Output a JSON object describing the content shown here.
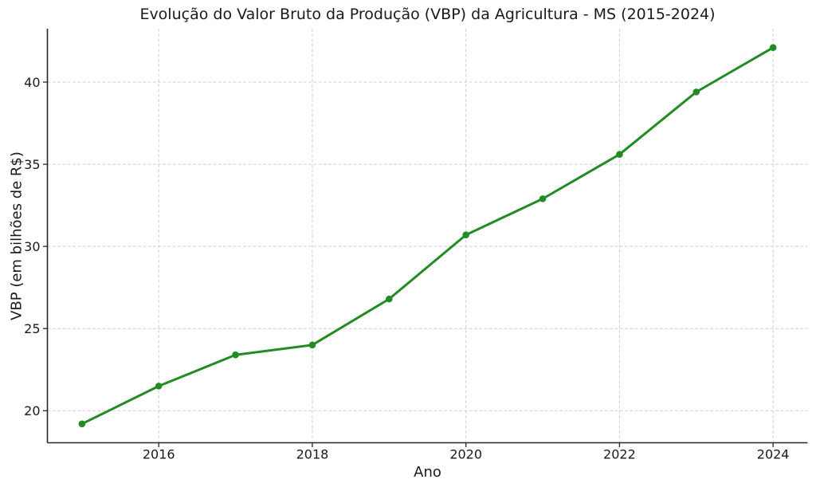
{
  "figure": {
    "background": "#ffffff"
  },
  "chart_data": {
    "type": "line",
    "title": "Evolução do Valor Bruto da Produção (VBP) da Agricultura - MS (2015-2024)",
    "xlabel": "Ano",
    "ylabel": "VBP (em bilhões de R$)",
    "x": [
      2015,
      2016,
      2017,
      2018,
      2019,
      2020,
      2021,
      2022,
      2023,
      2024
    ],
    "values": [
      19.2,
      21.5,
      23.4,
      24.0,
      26.8,
      30.7,
      32.9,
      35.6,
      39.4,
      42.1
    ],
    "x_ticks": [
      2016,
      2018,
      2020,
      2022,
      2024
    ],
    "y_ticks": [
      20,
      25,
      30,
      35,
      40
    ],
    "xlim": [
      2014.55,
      2024.45
    ],
    "ylim": [
      18.05,
      43.25
    ],
    "grid": true,
    "grid_style": "dashed",
    "legend_position": "none",
    "line_color": "#228b22",
    "marker": "circle",
    "marker_radius": 4.3,
    "line_width": 3,
    "grid_color": "#cfcfcf",
    "axis_color": "#262626",
    "text_color": "#1a1a1a"
  }
}
